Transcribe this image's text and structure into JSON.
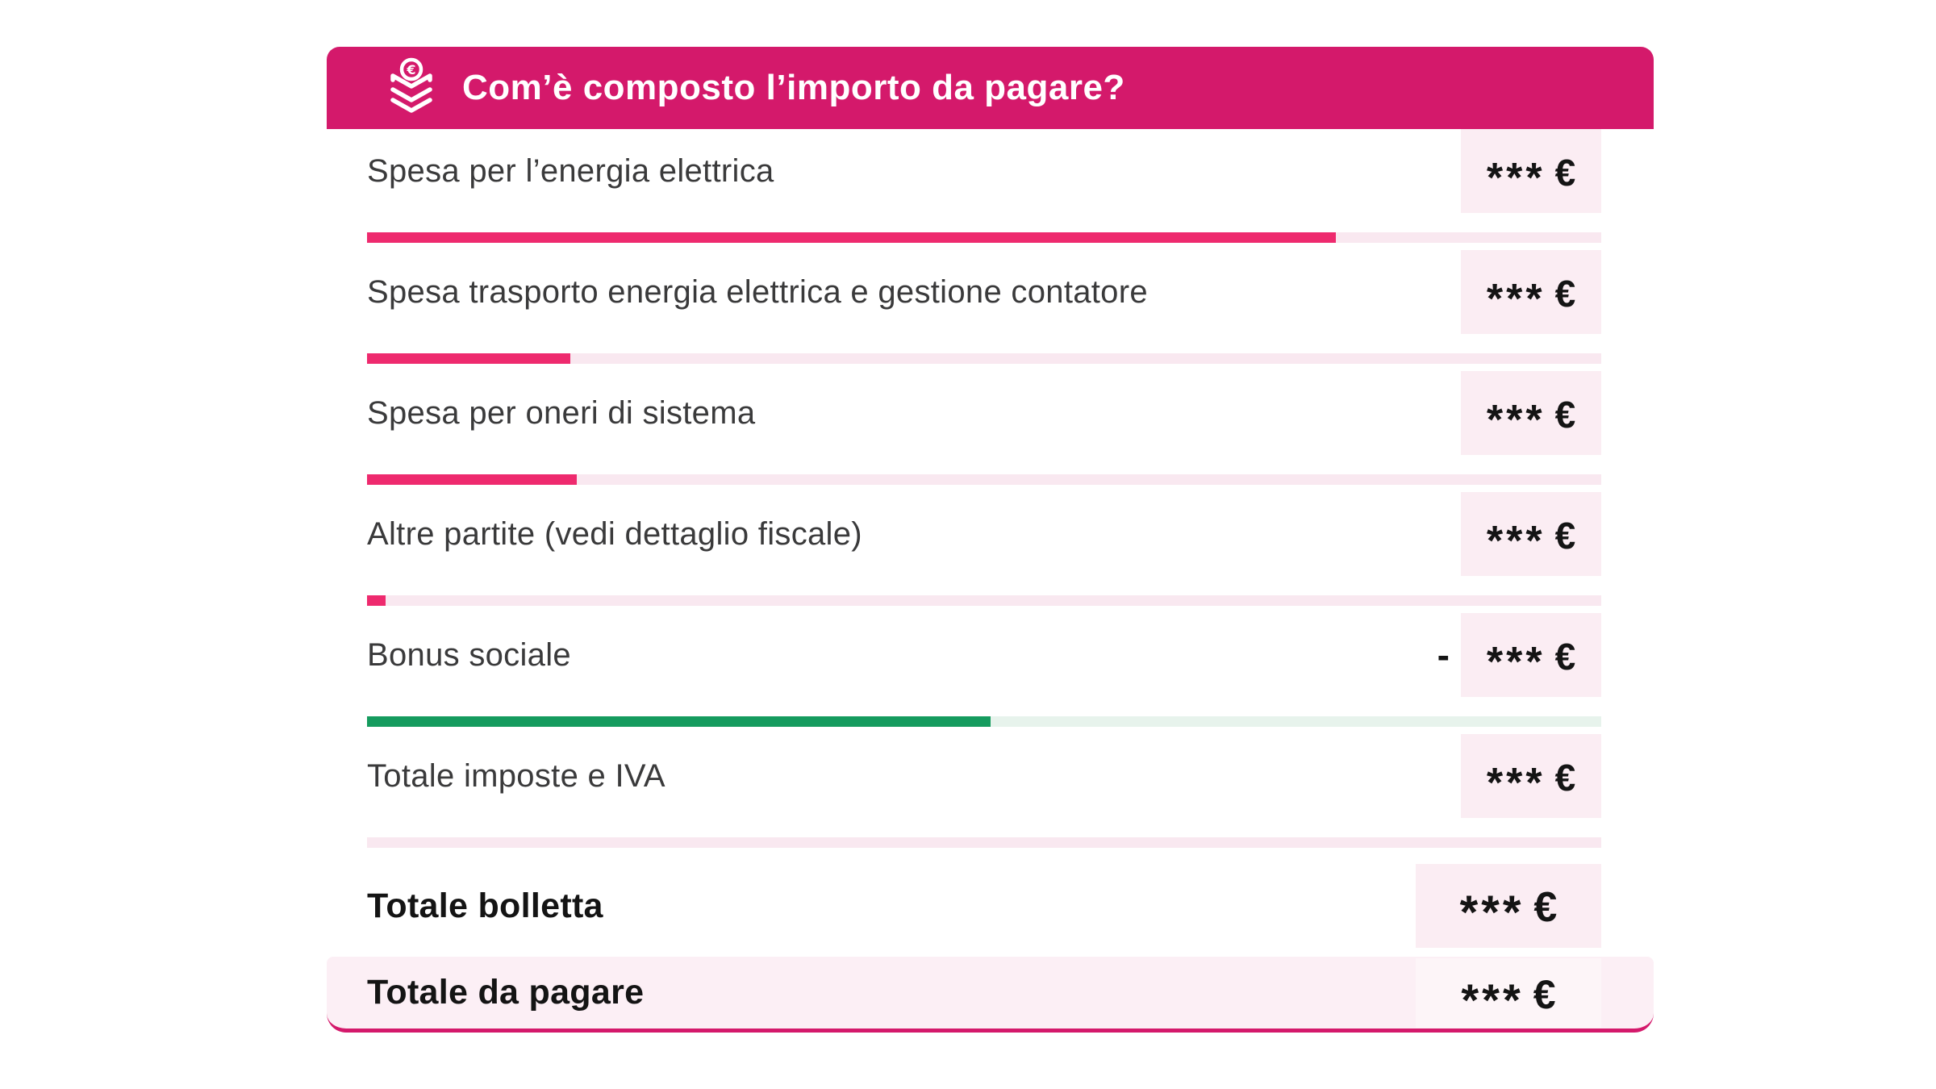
{
  "header": {
    "title": "Com’è composto l’importo da pagare?",
    "icon": "euro-coin-stack"
  },
  "rows": [
    {
      "label": "Spesa per l’energia elettrica",
      "sign": "",
      "stars": "***",
      "currency": "€",
      "fill_pct": 78.5,
      "variant": "pink"
    },
    {
      "label": "Spesa trasporto energia elettrica e gestione contatore",
      "sign": "",
      "stars": "***",
      "currency": "€",
      "fill_pct": 16.5,
      "variant": "pink"
    },
    {
      "label": "Spesa per oneri di sistema",
      "sign": "",
      "stars": "***",
      "currency": "€",
      "fill_pct": 17,
      "variant": "pink"
    },
    {
      "label": "Altre partite (vedi dettaglio fiscale)",
      "sign": "",
      "stars": "***",
      "currency": "€",
      "fill_pct": 1.5,
      "variant": "pink"
    },
    {
      "label": "Bonus sociale",
      "sign": "-",
      "stars": "***",
      "currency": "€",
      "fill_pct": 50.5,
      "variant": "green"
    },
    {
      "label": "Totale imposte e IVA",
      "sign": "",
      "stars": "***",
      "currency": "€",
      "fill_pct": 0,
      "variant": "pink"
    }
  ],
  "totals": [
    {
      "label": "Totale bolletta",
      "stars": "***",
      "currency": "€"
    },
    {
      "label": "Totale da pagare",
      "stars": "***",
      "currency": "€"
    }
  ],
  "colors": {
    "accent_pink": "#D4196B",
    "bar_fill_pink": "#EE2A6E",
    "bar_track_pink": "#F9E8F0",
    "bar_fill_green": "#159B5E",
    "bar_track_green": "#E7F3EC",
    "value_chip_bg": "#FBEDF3",
    "pay_band_bg": "#FCEFF5",
    "label_text": "#3A3A3B",
    "value_text": "#141414"
  },
  "chart_data": {
    "type": "bar",
    "title": "Com’è composto l’importo da pagare?",
    "orientation": "horizontal",
    "categories": [
      "Spesa per l’energia elettrica",
      "Spesa trasporto energia elettrica e gestione contatore",
      "Spesa per oneri di sistema",
      "Altre partite (vedi dettaglio fiscale)",
      "Bonus sociale",
      "Totale imposte e IVA"
    ],
    "values_pct_of_track": [
      78.5,
      16.5,
      17,
      1.5,
      50.5,
      0
    ],
    "value_labels": [
      "***€",
      "***€",
      "***€",
      "***€",
      "- ***€",
      "***€"
    ],
    "bar_colors": [
      "#EE2A6E",
      "#EE2A6E",
      "#EE2A6E",
      "#EE2A6E",
      "#159B5E",
      "#EE2A6E"
    ],
    "note_totals": {
      "Totale bolletta": "***€",
      "Totale da pagare": "***€"
    },
    "xlim": [
      0,
      100
    ],
    "grid": false,
    "legend": false,
    "values_masked": true
  }
}
